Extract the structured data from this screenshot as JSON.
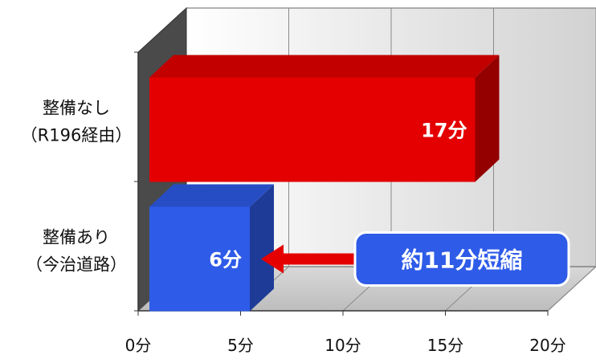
{
  "chart_data": {
    "type": "bar",
    "orientation": "horizontal",
    "style": "3d",
    "categories": [
      [
        "整備なし",
        "（R196経由）"
      ],
      [
        "整備あり",
        "（今治道路）"
      ]
    ],
    "values": [
      17,
      6
    ],
    "value_labels": [
      "17分",
      "6分"
    ],
    "bar_colors": [
      "#e40000",
      "#2e5be8"
    ],
    "xlim": [
      0,
      20
    ],
    "x_ticks": [
      0,
      5,
      10,
      15,
      20
    ],
    "x_tick_labels": [
      "0分",
      "5分",
      "10分",
      "15分",
      "20分"
    ],
    "grid": true,
    "annotation": {
      "text": "約11分短縮",
      "color": "#2e5be8",
      "arrow_color": "#e40000",
      "points_to": "整備あり"
    }
  }
}
